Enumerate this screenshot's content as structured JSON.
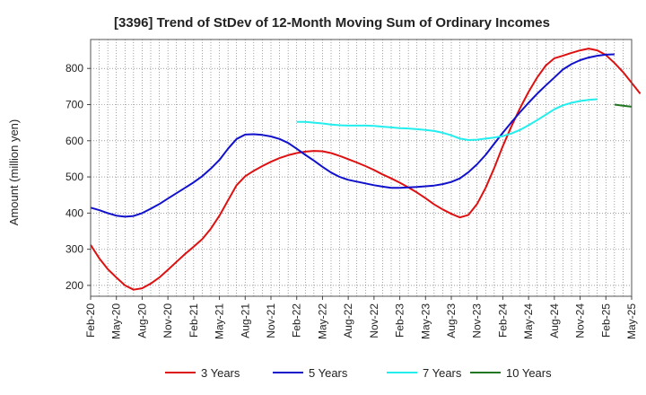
{
  "chart_data": {
    "type": "line",
    "title": "[3396]  Trend of StDev of 12-Month Moving Sum of Ordinary Incomes",
    "xlabel": "",
    "ylabel": "Amount (million yen)",
    "ylim": [
      170,
      880
    ],
    "yticks": [
      200,
      300,
      400,
      500,
      600,
      700,
      800
    ],
    "xlim": [
      0,
      63
    ],
    "x_ticks": [
      "Feb-20",
      "May-20",
      "Aug-20",
      "Nov-20",
      "Feb-21",
      "May-21",
      "Aug-21",
      "Nov-21",
      "Feb-22",
      "May-22",
      "Aug-22",
      "Nov-22",
      "Feb-23",
      "May-23",
      "Aug-23",
      "Nov-23",
      "Feb-24",
      "May-24",
      "Aug-24",
      "Nov-24",
      "Feb-25",
      "May-25"
    ],
    "grid": true,
    "legend_position": "bottom",
    "series": [
      {
        "name": "3 Years",
        "color": "#dd1111",
        "start_index": 0,
        "values": [
          312,
          275,
          245,
          222,
          200,
          188,
          192,
          205,
          222,
          243,
          265,
          287,
          307,
          328,
          357,
          393,
          435,
          477,
          502,
          517,
          530,
          542,
          552,
          560,
          566,
          570,
          572,
          571,
          566,
          558,
          549,
          540,
          530,
          519,
          507,
          496,
          484,
          471,
          457,
          441,
          424,
          410,
          398,
          388,
          395,
          425,
          470,
          525,
          585,
          640,
          690,
          735,
          775,
          808,
          828,
          835,
          843,
          850,
          855,
          850,
          837,
          815,
          790,
          760,
          730
        ]
      },
      {
        "name": "5 Years",
        "color": "#1111cc",
        "start_index": 0,
        "values": [
          415,
          408,
          400,
          393,
          390,
          392,
          400,
          412,
          425,
          440,
          455,
          470,
          485,
          502,
          523,
          547,
          578,
          605,
          617,
          618,
          616,
          612,
          605,
          594,
          578,
          561,
          545,
          528,
          512,
          500,
          492,
          487,
          482,
          477,
          473,
          470,
          470,
          471,
          472,
          474,
          476,
          480,
          486,
          496,
          513,
          535,
          561,
          592,
          622,
          651,
          679,
          705,
          730,
          753,
          775,
          797,
          812,
          823,
          830,
          835,
          838,
          839
        ]
      },
      {
        "name": "7 Years",
        "color": "#22eeee",
        "start_index": 24,
        "values": [
          652,
          652,
          650,
          648,
          645,
          643,
          642,
          642,
          642,
          641,
          639,
          637,
          635,
          634,
          632,
          630,
          627,
          622,
          615,
          606,
          602,
          603,
          606,
          609,
          613,
          620,
          630,
          643,
          657,
          672,
          687,
          698,
          705,
          710,
          713,
          715
        ]
      },
      {
        "name": "10 Years",
        "color": "#227722",
        "start_index": 61,
        "values": [
          700,
          697,
          694
        ]
      }
    ]
  }
}
